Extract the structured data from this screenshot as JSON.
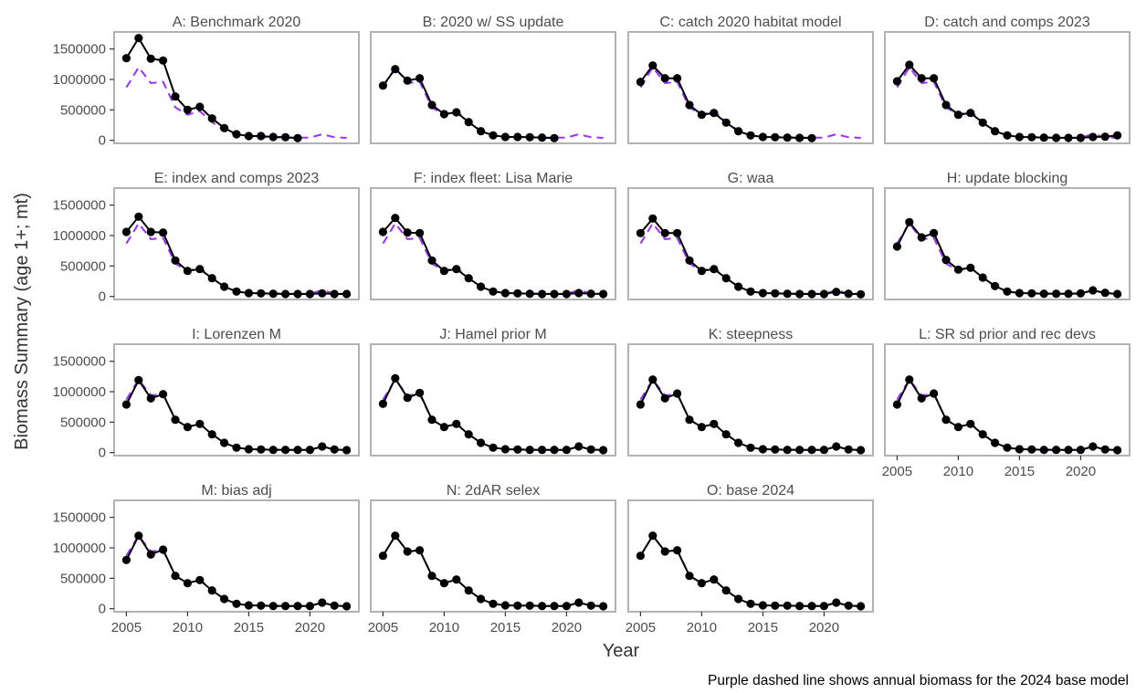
{
  "chart_data": {
    "type": "line",
    "xlabel": "Year",
    "ylabel": "Biomass Summary (age 1+; mt)",
    "caption": "Purple dashed line shows annual biomass for the 2024 base model",
    "xlim": [
      2004,
      2024
    ],
    "ylim": [
      -50000,
      1780000
    ],
    "xticks": [
      2005,
      2010,
      2015,
      2020
    ],
    "yticks": [
      0,
      500000,
      1000000,
      1500000
    ],
    "grid": false,
    "colors": {
      "model": "#000000",
      "base2024": "#9b30ff",
      "panel_border": "#b3b3b3"
    },
    "base2024": {
      "x": [
        2005,
        2006,
        2007,
        2008,
        2009,
        2010,
        2011,
        2012,
        2013,
        2014,
        2015,
        2016,
        2017,
        2018,
        2019,
        2020,
        2021,
        2022,
        2023
      ],
      "values": [
        870000,
        1200000,
        940000,
        960000,
        540000,
        420000,
        480000,
        300000,
        160000,
        80000,
        55000,
        50000,
        50000,
        45000,
        45000,
        45000,
        100000,
        50000,
        40000
      ]
    },
    "panels": [
      {
        "title": "A: Benchmark 2020",
        "x": [
          2005,
          2006,
          2007,
          2008,
          2009,
          2010,
          2011,
          2012,
          2013,
          2014,
          2015,
          2016,
          2017,
          2018,
          2019
        ],
        "values": [
          1350000,
          1680000,
          1340000,
          1310000,
          720000,
          500000,
          550000,
          360000,
          200000,
          100000,
          70000,
          70000,
          55000,
          50000,
          35000
        ]
      },
      {
        "title": "B: 2020 w/ SS update",
        "x": [
          2005,
          2006,
          2007,
          2008,
          2009,
          2010,
          2011,
          2012,
          2013,
          2014,
          2015,
          2016,
          2017,
          2018,
          2019
        ],
        "values": [
          900000,
          1170000,
          980000,
          1020000,
          580000,
          430000,
          460000,
          300000,
          150000,
          80000,
          55000,
          55000,
          50000,
          45000,
          35000
        ]
      },
      {
        "title": "C: catch 2020 habitat model",
        "x": [
          2005,
          2006,
          2007,
          2008,
          2009,
          2010,
          2011,
          2012,
          2013,
          2014,
          2015,
          2016,
          2017,
          2018,
          2019
        ],
        "values": [
          960000,
          1230000,
          1020000,
          1020000,
          580000,
          420000,
          450000,
          290000,
          150000,
          80000,
          55000,
          50000,
          45000,
          40000,
          35000
        ]
      },
      {
        "title": "D: catch and comps 2023",
        "x": [
          2005,
          2006,
          2007,
          2008,
          2009,
          2010,
          2011,
          2012,
          2013,
          2014,
          2015,
          2016,
          2017,
          2018,
          2019,
          2020,
          2021,
          2022,
          2023
        ],
        "values": [
          970000,
          1240000,
          1020000,
          1020000,
          580000,
          420000,
          450000,
          290000,
          150000,
          80000,
          55000,
          50000,
          45000,
          40000,
          40000,
          40000,
          55000,
          60000,
          80000
        ]
      },
      {
        "title": "E: index and comps 2023",
        "x": [
          2005,
          2006,
          2007,
          2008,
          2009,
          2010,
          2011,
          2012,
          2013,
          2014,
          2015,
          2016,
          2017,
          2018,
          2019,
          2020,
          2021,
          2022,
          2023
        ],
        "values": [
          1060000,
          1310000,
          1060000,
          1050000,
          590000,
          420000,
          450000,
          300000,
          160000,
          80000,
          55000,
          50000,
          45000,
          40000,
          40000,
          40000,
          50000,
          40000,
          40000
        ]
      },
      {
        "title": "F: index fleet: Lisa Marie",
        "x": [
          2005,
          2006,
          2007,
          2008,
          2009,
          2010,
          2011,
          2012,
          2013,
          2014,
          2015,
          2016,
          2017,
          2018,
          2019,
          2020,
          2021,
          2022,
          2023
        ],
        "values": [
          1060000,
          1290000,
          1050000,
          1040000,
          590000,
          420000,
          450000,
          300000,
          160000,
          80000,
          55000,
          50000,
          45000,
          40000,
          40000,
          40000,
          55000,
          45000,
          40000
        ]
      },
      {
        "title": "G: waa",
        "x": [
          2005,
          2006,
          2007,
          2008,
          2009,
          2010,
          2011,
          2012,
          2013,
          2014,
          2015,
          2016,
          2017,
          2018,
          2019,
          2020,
          2021,
          2022,
          2023
        ],
        "values": [
          1040000,
          1280000,
          1040000,
          1040000,
          590000,
          420000,
          450000,
          300000,
          160000,
          80000,
          55000,
          50000,
          45000,
          40000,
          40000,
          40000,
          75000,
          45000,
          35000
        ]
      },
      {
        "title": "H: update blocking",
        "x": [
          2005,
          2006,
          2007,
          2008,
          2009,
          2010,
          2011,
          2012,
          2013,
          2014,
          2015,
          2016,
          2017,
          2018,
          2019,
          2020,
          2021,
          2022,
          2023
        ],
        "values": [
          820000,
          1220000,
          970000,
          1040000,
          600000,
          440000,
          470000,
          310000,
          170000,
          80000,
          55000,
          50000,
          45000,
          45000,
          45000,
          50000,
          100000,
          60000,
          40000
        ]
      },
      {
        "title": "I: Lorenzen M",
        "x": [
          2005,
          2006,
          2007,
          2008,
          2009,
          2010,
          2011,
          2012,
          2013,
          2014,
          2015,
          2016,
          2017,
          2018,
          2019,
          2020,
          2021,
          2022,
          2023
        ],
        "values": [
          790000,
          1190000,
          890000,
          960000,
          540000,
          420000,
          470000,
          300000,
          160000,
          80000,
          55000,
          50000,
          45000,
          45000,
          45000,
          45000,
          100000,
          50000,
          40000
        ]
      },
      {
        "title": "J: Hamel prior M",
        "x": [
          2005,
          2006,
          2007,
          2008,
          2009,
          2010,
          2011,
          2012,
          2013,
          2014,
          2015,
          2016,
          2017,
          2018,
          2019,
          2020,
          2021,
          2022,
          2023
        ],
        "values": [
          800000,
          1220000,
          900000,
          980000,
          540000,
          420000,
          470000,
          300000,
          160000,
          80000,
          55000,
          50000,
          45000,
          45000,
          45000,
          45000,
          100000,
          50000,
          40000
        ]
      },
      {
        "title": "K: steepness",
        "x": [
          2005,
          2006,
          2007,
          2008,
          2009,
          2010,
          2011,
          2012,
          2013,
          2014,
          2015,
          2016,
          2017,
          2018,
          2019,
          2020,
          2021,
          2022,
          2023
        ],
        "values": [
          790000,
          1200000,
          890000,
          970000,
          540000,
          420000,
          470000,
          300000,
          160000,
          80000,
          55000,
          50000,
          45000,
          45000,
          45000,
          45000,
          100000,
          50000,
          40000
        ]
      },
      {
        "title": "L: SR sd prior and rec devs",
        "x": [
          2005,
          2006,
          2007,
          2008,
          2009,
          2010,
          2011,
          2012,
          2013,
          2014,
          2015,
          2016,
          2017,
          2018,
          2019,
          2020,
          2021,
          2022,
          2023
        ],
        "values": [
          790000,
          1200000,
          890000,
          970000,
          540000,
          420000,
          470000,
          300000,
          160000,
          80000,
          55000,
          50000,
          45000,
          45000,
          45000,
          45000,
          100000,
          50000,
          40000
        ]
      },
      {
        "title": "M: bias adj",
        "x": [
          2005,
          2006,
          2007,
          2008,
          2009,
          2010,
          2011,
          2012,
          2013,
          2014,
          2015,
          2016,
          2017,
          2018,
          2019,
          2020,
          2021,
          2022,
          2023
        ],
        "values": [
          800000,
          1200000,
          890000,
          970000,
          540000,
          420000,
          470000,
          300000,
          160000,
          80000,
          55000,
          50000,
          45000,
          45000,
          45000,
          45000,
          100000,
          50000,
          40000
        ]
      },
      {
        "title": "N: 2dAR selex",
        "x": [
          2005,
          2006,
          2007,
          2008,
          2009,
          2010,
          2011,
          2012,
          2013,
          2014,
          2015,
          2016,
          2017,
          2018,
          2019,
          2020,
          2021,
          2022,
          2023
        ],
        "values": [
          870000,
          1200000,
          940000,
          960000,
          540000,
          420000,
          480000,
          300000,
          160000,
          80000,
          55000,
          50000,
          50000,
          45000,
          45000,
          45000,
          100000,
          50000,
          40000
        ]
      },
      {
        "title": "O: base 2024",
        "x": [
          2005,
          2006,
          2007,
          2008,
          2009,
          2010,
          2011,
          2012,
          2013,
          2014,
          2015,
          2016,
          2017,
          2018,
          2019,
          2020,
          2021,
          2022,
          2023
        ],
        "values": [
          870000,
          1200000,
          940000,
          960000,
          540000,
          420000,
          480000,
          300000,
          160000,
          80000,
          55000,
          50000,
          50000,
          45000,
          45000,
          45000,
          100000,
          50000,
          40000
        ]
      }
    ]
  }
}
